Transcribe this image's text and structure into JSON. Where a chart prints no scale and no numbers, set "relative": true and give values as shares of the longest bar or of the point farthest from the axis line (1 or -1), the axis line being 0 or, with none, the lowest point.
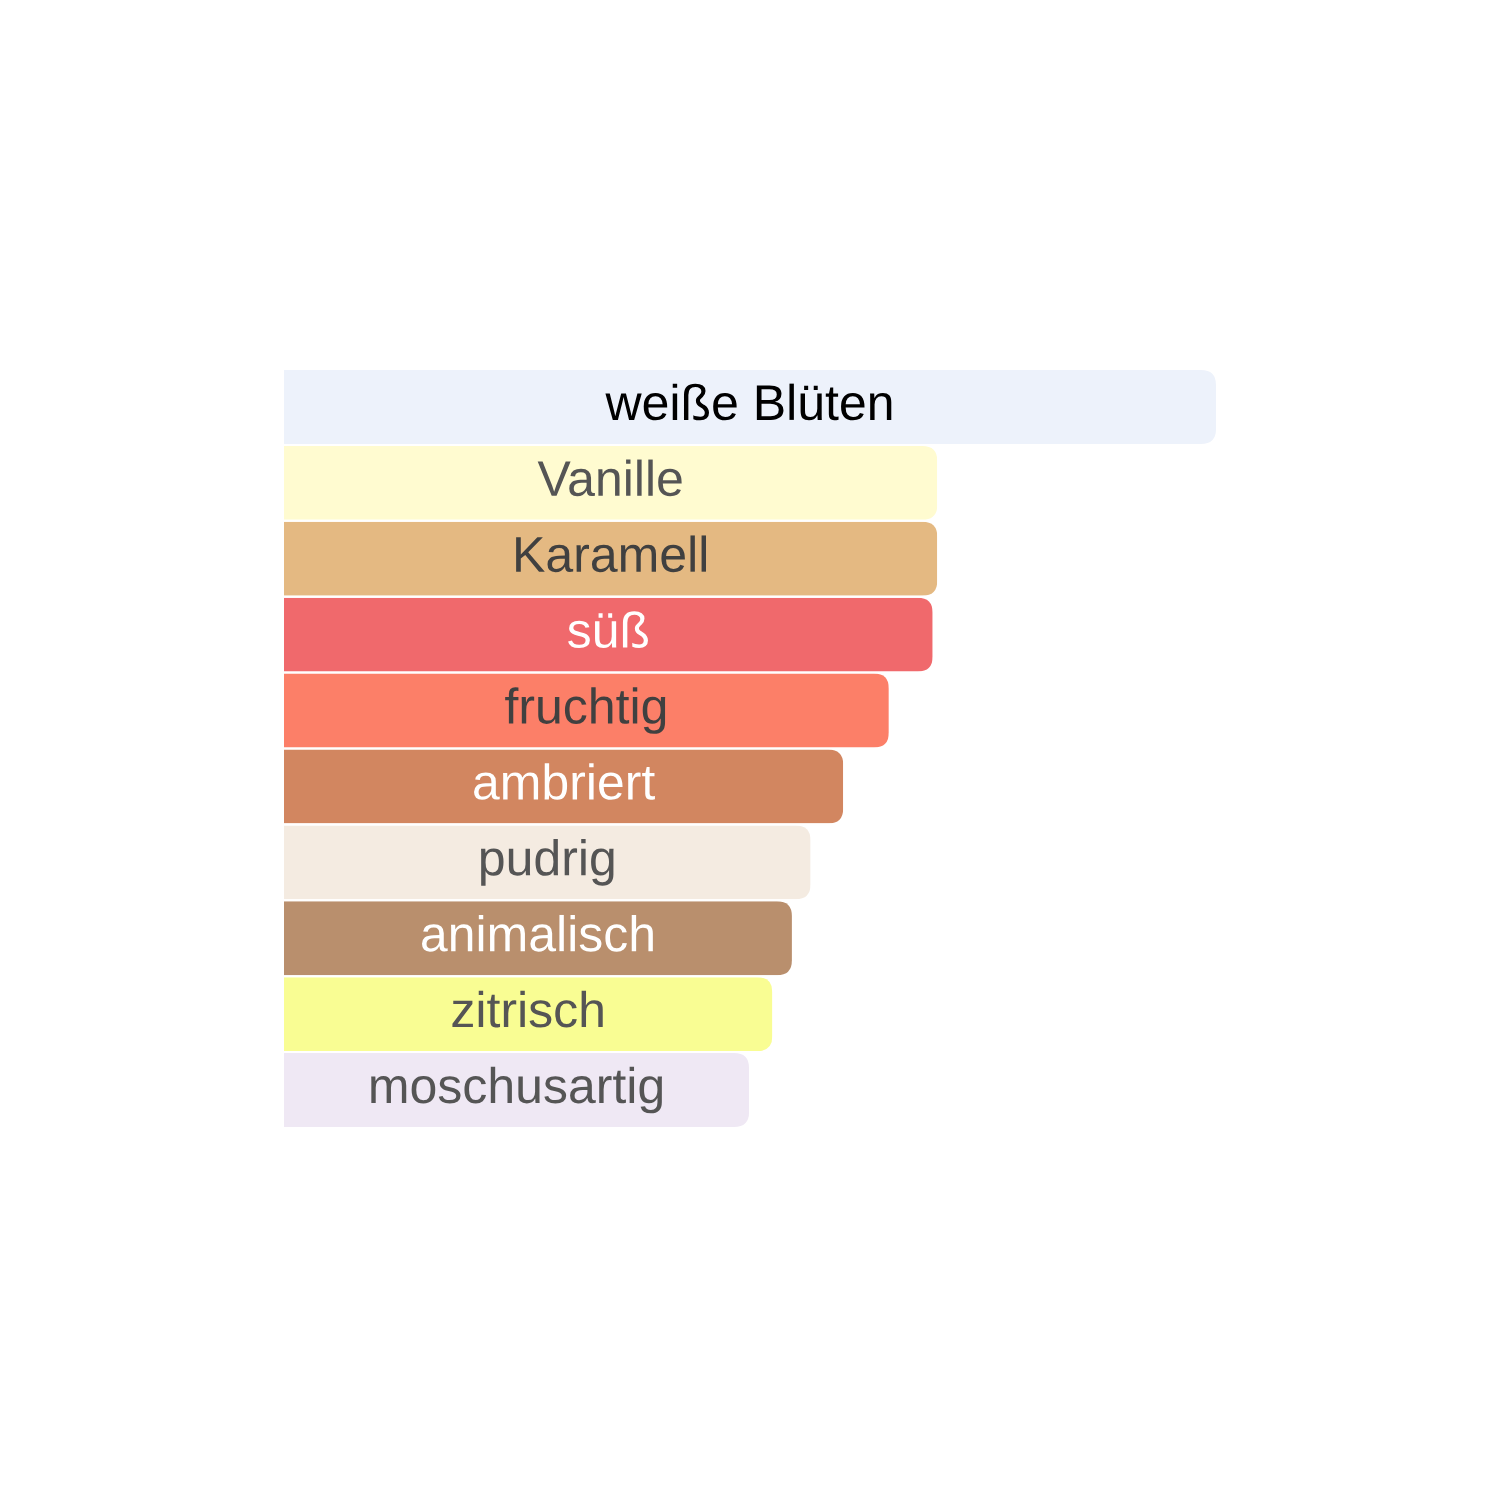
{
  "chart_data": {
    "type": "bar",
    "orientation": "horizontal",
    "relative": true,
    "categories": [
      "weiße Blüten",
      "Vanille",
      "Karamell",
      "süß",
      "fruchtig",
      "ambriert",
      "pudrig",
      "animalisch",
      "zitrisch",
      "moschusartig"
    ],
    "values": [
      1,
      0.701,
      0.701,
      0.696,
      0.649,
      0.6,
      0.565,
      0.545,
      0.524,
      0.499
    ],
    "colors": [
      "#edf2fb",
      "#fffbd0",
      "#e4b982",
      "#f0696c",
      "#fc7f68",
      "#d28660",
      "#f4ebe1",
      "#b98f6d",
      "#f9fd93",
      "#efe8f4"
    ]
  }
}
